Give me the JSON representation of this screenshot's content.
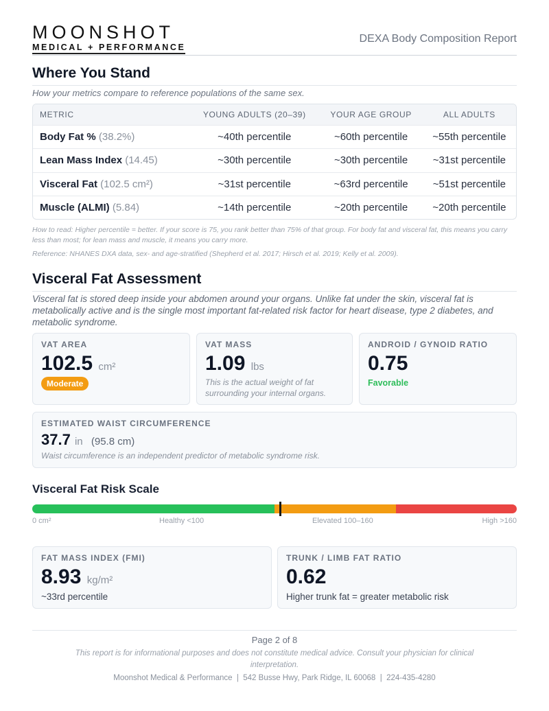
{
  "header": {
    "brand": "MOONSHOT",
    "brand_sub": "MEDICAL + PERFORMANCE",
    "report_title": "DEXA Body Composition Report"
  },
  "where_you_stand": {
    "title": "Where You Stand",
    "subtitle": "How your metrics compare to reference populations of the same sex.",
    "table": {
      "columns": [
        "METRIC",
        "YOUNG ADULTS (20–39)",
        "YOUR AGE GROUP",
        "ALL ADULTS"
      ],
      "rows": [
        {
          "metric": "Body Fat %",
          "value": "(38.2%)",
          "cells": [
            "~40th percentile",
            "~60th percentile",
            "~55th percentile"
          ]
        },
        {
          "metric": "Lean Mass Index",
          "value": "(14.45)",
          "cells": [
            "~30th percentile",
            "~30th percentile",
            "~31st percentile"
          ]
        },
        {
          "metric": "Visceral Fat",
          "value": "(102.5 cm²)",
          "cells": [
            "~31st percentile",
            "~63rd percentile",
            "~51st percentile"
          ]
        },
        {
          "metric": "Muscle (ALMI)",
          "value": "(5.84)",
          "cells": [
            "~14th percentile",
            "~20th percentile",
            "~20th percentile"
          ]
        }
      ]
    },
    "notes": [
      "How to read: Higher percentile = better. If your score is 75, you rank better than 75% of that group. For body fat and visceral fat, this means you carry less than most; for lean mass and muscle, it means you carry more.",
      "Reference: NHANES DXA data, sex- and age-stratified (Shepherd et al. 2017; Hirsch et al. 2019; Kelly et al. 2009)."
    ]
  },
  "visceral": {
    "title": "Visceral Fat Assessment",
    "intro": "Visceral fat is stored deep inside your abdomen around your organs. Unlike fat under the skin, visceral fat is metabolically active and is the single most important fat-related risk factor for heart disease, type 2 diabetes, and metabolic syndrome.",
    "cards": [
      {
        "label": "VAT AREA",
        "value": "102.5",
        "unit": "cm²",
        "badge": "Moderate"
      },
      {
        "label": "VAT MASS",
        "value": "1.09",
        "unit": "lbs",
        "note": "This is the actual weight of fat surrounding your internal organs."
      },
      {
        "label": "ANDROID / GYNOID RATIO",
        "value": "0.75",
        "status": "Favorable"
      }
    ],
    "waist": {
      "label": "ESTIMATED WAIST CIRCUMFERENCE",
      "value": "37.7",
      "unit": "in",
      "alt": "(95.8 cm)",
      "note": "Waist circumference is an independent predictor of metabolic syndrome risk."
    }
  },
  "risk_scale": {
    "title": "Visceral Fat Risk Scale",
    "labels": [
      "0 cm²",
      "Healthy <100",
      "Elevated 100–160",
      "High >160"
    ]
  },
  "bottom_cards": [
    {
      "label": "FAT MASS INDEX (FMI)",
      "value": "8.93",
      "unit": "kg/m²",
      "sub": "~33rd percentile"
    },
    {
      "label": "TRUNK / LIMB FAT RATIO",
      "value": "0.62",
      "sub": "Higher trunk fat = greater metabolic risk"
    }
  ],
  "footer": {
    "page": "Page 2 of 8",
    "disclaimer": "This report is for informational purposes and does not constitute medical advice. Consult your physician for clinical interpretation.",
    "contact": "Moonshot Medical & Performance  |  542 Busse Hwy, Park Ridge, IL 60068  |  224-435-4280"
  }
}
